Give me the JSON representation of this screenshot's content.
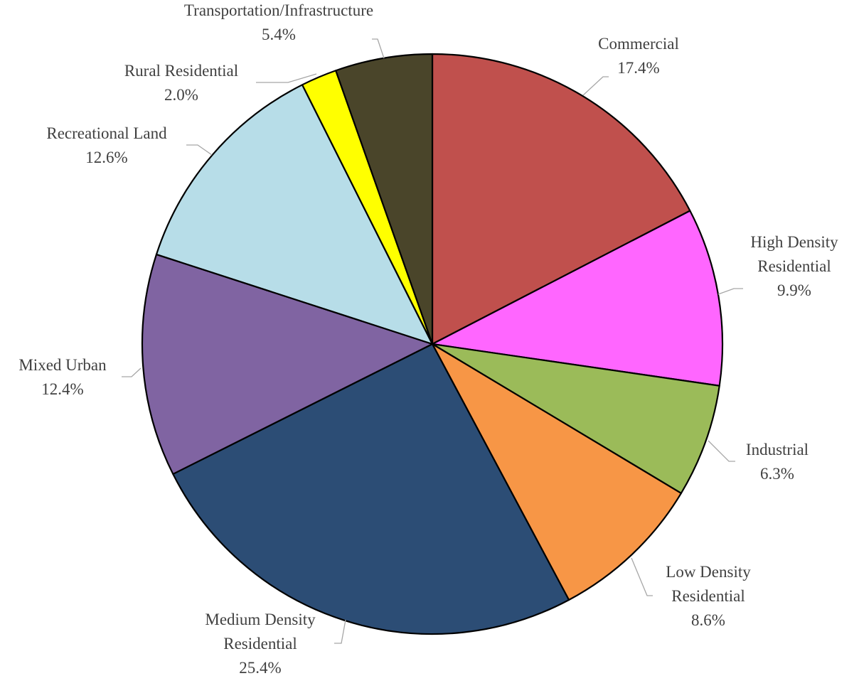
{
  "chart_data": {
    "type": "pie",
    "title": "",
    "start_angle_deg": 0,
    "direction": "clockwise",
    "slices": [
      {
        "label": [
          "Commercial"
        ],
        "value": 17.4,
        "pct": "17.4%",
        "color": "#C0504D"
      },
      {
        "label": [
          "High Density",
          "Residential"
        ],
        "value": 9.9,
        "pct": "9.9%",
        "color": "#FF66FF"
      },
      {
        "label": [
          "Industrial"
        ],
        "value": 6.3,
        "pct": "6.3%",
        "color": "#9BBB59"
      },
      {
        "label": [
          "Low Density",
          "Residential"
        ],
        "value": 8.6,
        "pct": "8.6%",
        "color": "#F79646"
      },
      {
        "label": [
          "Medium Density",
          "Residential"
        ],
        "value": 25.4,
        "pct": "25.4%",
        "color": "#2C4D75"
      },
      {
        "label": [
          "Mixed Urban"
        ],
        "value": 12.4,
        "pct": "12.4%",
        "color": "#8064A2"
      },
      {
        "label": [
          "Recreational Land"
        ],
        "value": 12.6,
        "pct": "12.6%",
        "color": "#B7DDE8"
      },
      {
        "label": [
          "Rural Residential"
        ],
        "value": 2.0,
        "pct": "2.0%",
        "color": "#FFFF00"
      },
      {
        "label": [
          "Transportation/Infrastructure"
        ],
        "value": 5.4,
        "pct": "5.4%",
        "color": "#4A452A"
      }
    ]
  }
}
